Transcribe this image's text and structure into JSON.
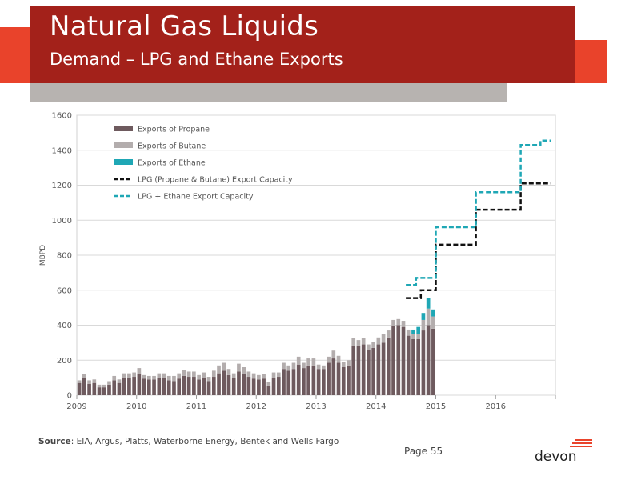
{
  "header": {
    "title": "Natural Gas Liquids",
    "subtitle": "Demand – LPG and Ethane Exports"
  },
  "footer": {
    "source_label": "Source",
    "source_text": ": EIA, Argus, Platts, Waterborne Energy, Bentek and Wells Fargo",
    "page": "Page 55",
    "logo_text": "devon"
  },
  "colors": {
    "propane": "#6E5A5E",
    "butane": "#B3ADAD",
    "ethane": "#1FA7B5",
    "lpg_capacity": "#111111",
    "lpg_ethane_capacity": "#1FA7B5",
    "brand_red": "#A3211A",
    "brand_orange": "#E9432B"
  },
  "chart_data": {
    "type": "bar",
    "ylabel": "MBPD",
    "ylim": [
      0,
      1600
    ],
    "yticks": [
      "0",
      "200",
      "400",
      "600",
      "800",
      "1000",
      "1200",
      "1400",
      "1600"
    ],
    "xlim": [
      2009,
      2017
    ],
    "xticks": [
      "2009",
      "2010",
      "2011",
      "2012",
      "2013",
      "2014",
      "2015",
      "2016"
    ],
    "grid": true,
    "legend_position": "top-left",
    "legend": [
      "Exports of Propane",
      "Exports of  Butane",
      "Exports of Ethane",
      "LPG (Propane & Butane) Export Capacity",
      "LPG + Ethane Export Capacity"
    ],
    "bars": {
      "start": "2009-01",
      "propane": [
        70,
        100,
        65,
        70,
        45,
        45,
        60,
        85,
        70,
        100,
        100,
        105,
        120,
        95,
        90,
        90,
        100,
        100,
        85,
        80,
        95,
        110,
        105,
        105,
        90,
        100,
        80,
        105,
        125,
        140,
        115,
        100,
        135,
        120,
        105,
        95,
        90,
        95,
        55,
        100,
        105,
        150,
        140,
        150,
        175,
        155,
        170,
        170,
        150,
        150,
        185,
        210,
        185,
        160,
        170,
        280,
        280,
        290,
        260,
        270,
        290,
        300,
        330,
        395,
        400,
        390,
        340,
        320,
        320,
        370,
        400,
        380
      ],
      "butane": [
        15,
        20,
        20,
        20,
        15,
        15,
        20,
        25,
        20,
        25,
        25,
        25,
        35,
        20,
        20,
        20,
        25,
        25,
        25,
        30,
        30,
        35,
        30,
        30,
        25,
        30,
        25,
        35,
        45,
        45,
        35,
        25,
        45,
        40,
        30,
        30,
        25,
        25,
        20,
        30,
        25,
        35,
        30,
        35,
        45,
        30,
        40,
        40,
        25,
        20,
        35,
        45,
        40,
        30,
        30,
        45,
        35,
        35,
        30,
        35,
        40,
        50,
        40,
        35,
        35,
        35,
        35,
        30,
        30,
        60,
        95,
        70
      ],
      "ethane": [
        0,
        0,
        0,
        0,
        0,
        0,
        0,
        0,
        0,
        0,
        0,
        0,
        0,
        0,
        0,
        0,
        0,
        0,
        0,
        0,
        0,
        0,
        0,
        0,
        0,
        0,
        0,
        0,
        0,
        0,
        0,
        0,
        0,
        0,
        0,
        0,
        0,
        0,
        0,
        0,
        0,
        0,
        0,
        0,
        0,
        0,
        0,
        0,
        0,
        0,
        0,
        0,
        0,
        0,
        0,
        0,
        0,
        0,
        0,
        0,
        0,
        0,
        0,
        0,
        0,
        0,
        0,
        25,
        40,
        40,
        60,
        40
      ]
    },
    "series": [
      {
        "name": "LPG (Propane & Butane) Export Capacity",
        "x": [
          2014.5,
          2014.75,
          2014.75,
          2014.9,
          2014.9,
          2015.0,
          2015.0,
          2015.67,
          2015.67,
          2016.42,
          2016.42,
          2016.92
        ],
        "y": [
          555,
          555,
          600,
          600,
          600,
          600,
          860,
          860,
          1060,
          1060,
          1210,
          1210
        ]
      },
      {
        "name": "LPG + Ethane Export Capacity",
        "x": [
          2014.5,
          2014.67,
          2014.67,
          2014.92,
          2014.92,
          2015.0,
          2015.0,
          2015.67,
          2015.67,
          2016.42,
          2016.42,
          2016.75,
          2016.75,
          2016.92
        ],
        "y": [
          630,
          630,
          670,
          670,
          670,
          670,
          960,
          960,
          1160,
          1160,
          1430,
          1430,
          1455,
          1455
        ]
      }
    ]
  }
}
